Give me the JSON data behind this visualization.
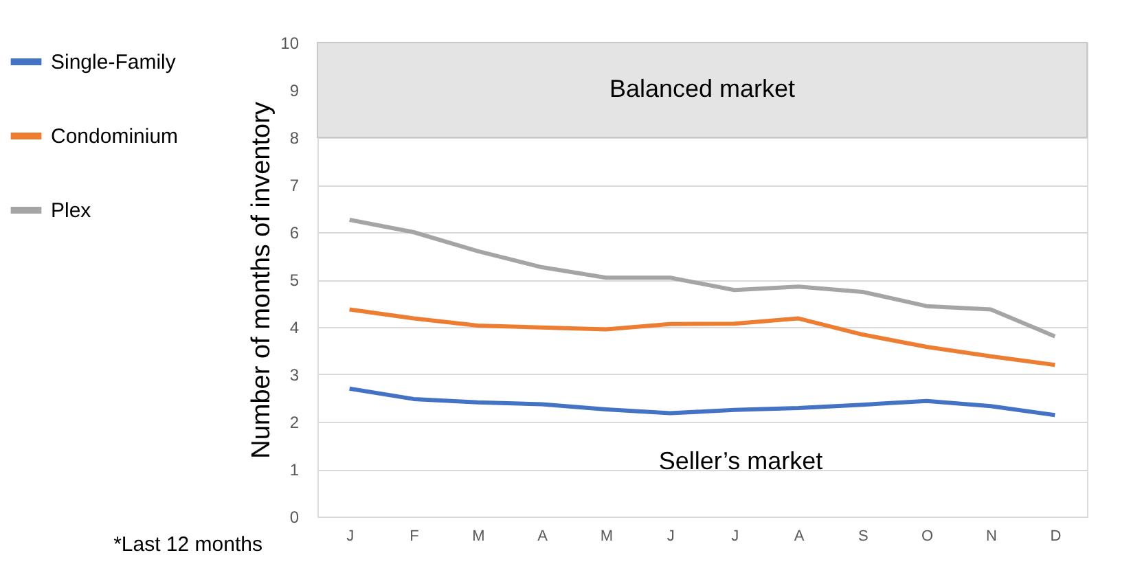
{
  "chart_data": {
    "type": "line",
    "ylabel": "Number of months of inventory",
    "categories": [
      "J",
      "F",
      "M",
      "A",
      "M",
      "J",
      "J",
      "A",
      "S",
      "O",
      "N",
      "D"
    ],
    "series": [
      {
        "name": "Single-Family",
        "color": "#4472c4",
        "values": [
          2.7,
          2.48,
          2.41,
          2.37,
          2.26,
          2.18,
          2.25,
          2.29,
          2.36,
          2.44,
          2.33,
          2.14
        ]
      },
      {
        "name": "Condominium",
        "color": "#ed7d31",
        "values": [
          4.37,
          4.18,
          4.03,
          3.99,
          3.95,
          4.06,
          4.07,
          4.18,
          3.84,
          3.58,
          3.38,
          3.2
        ]
      },
      {
        "name": "Plex",
        "color": "#a5a5a5",
        "values": [
          6.26,
          6.0,
          5.6,
          5.26,
          5.04,
          5.04,
          4.78,
          4.85,
          4.74,
          4.44,
          4.37,
          3.8
        ]
      }
    ],
    "ylim": [
      0,
      10
    ],
    "yticks": [
      0,
      1,
      2,
      3,
      4,
      5,
      6,
      7,
      8,
      9,
      10
    ],
    "grid": "y",
    "legend": "left",
    "line_style": "solid",
    "marker": "none",
    "bands": [
      {
        "axis": "y",
        "from": 8,
        "to": 10,
        "label": "Balanced market",
        "color": "#e4e4e4"
      }
    ],
    "annotations": [
      "Seller’s market",
      "*Last 12 months"
    ]
  }
}
